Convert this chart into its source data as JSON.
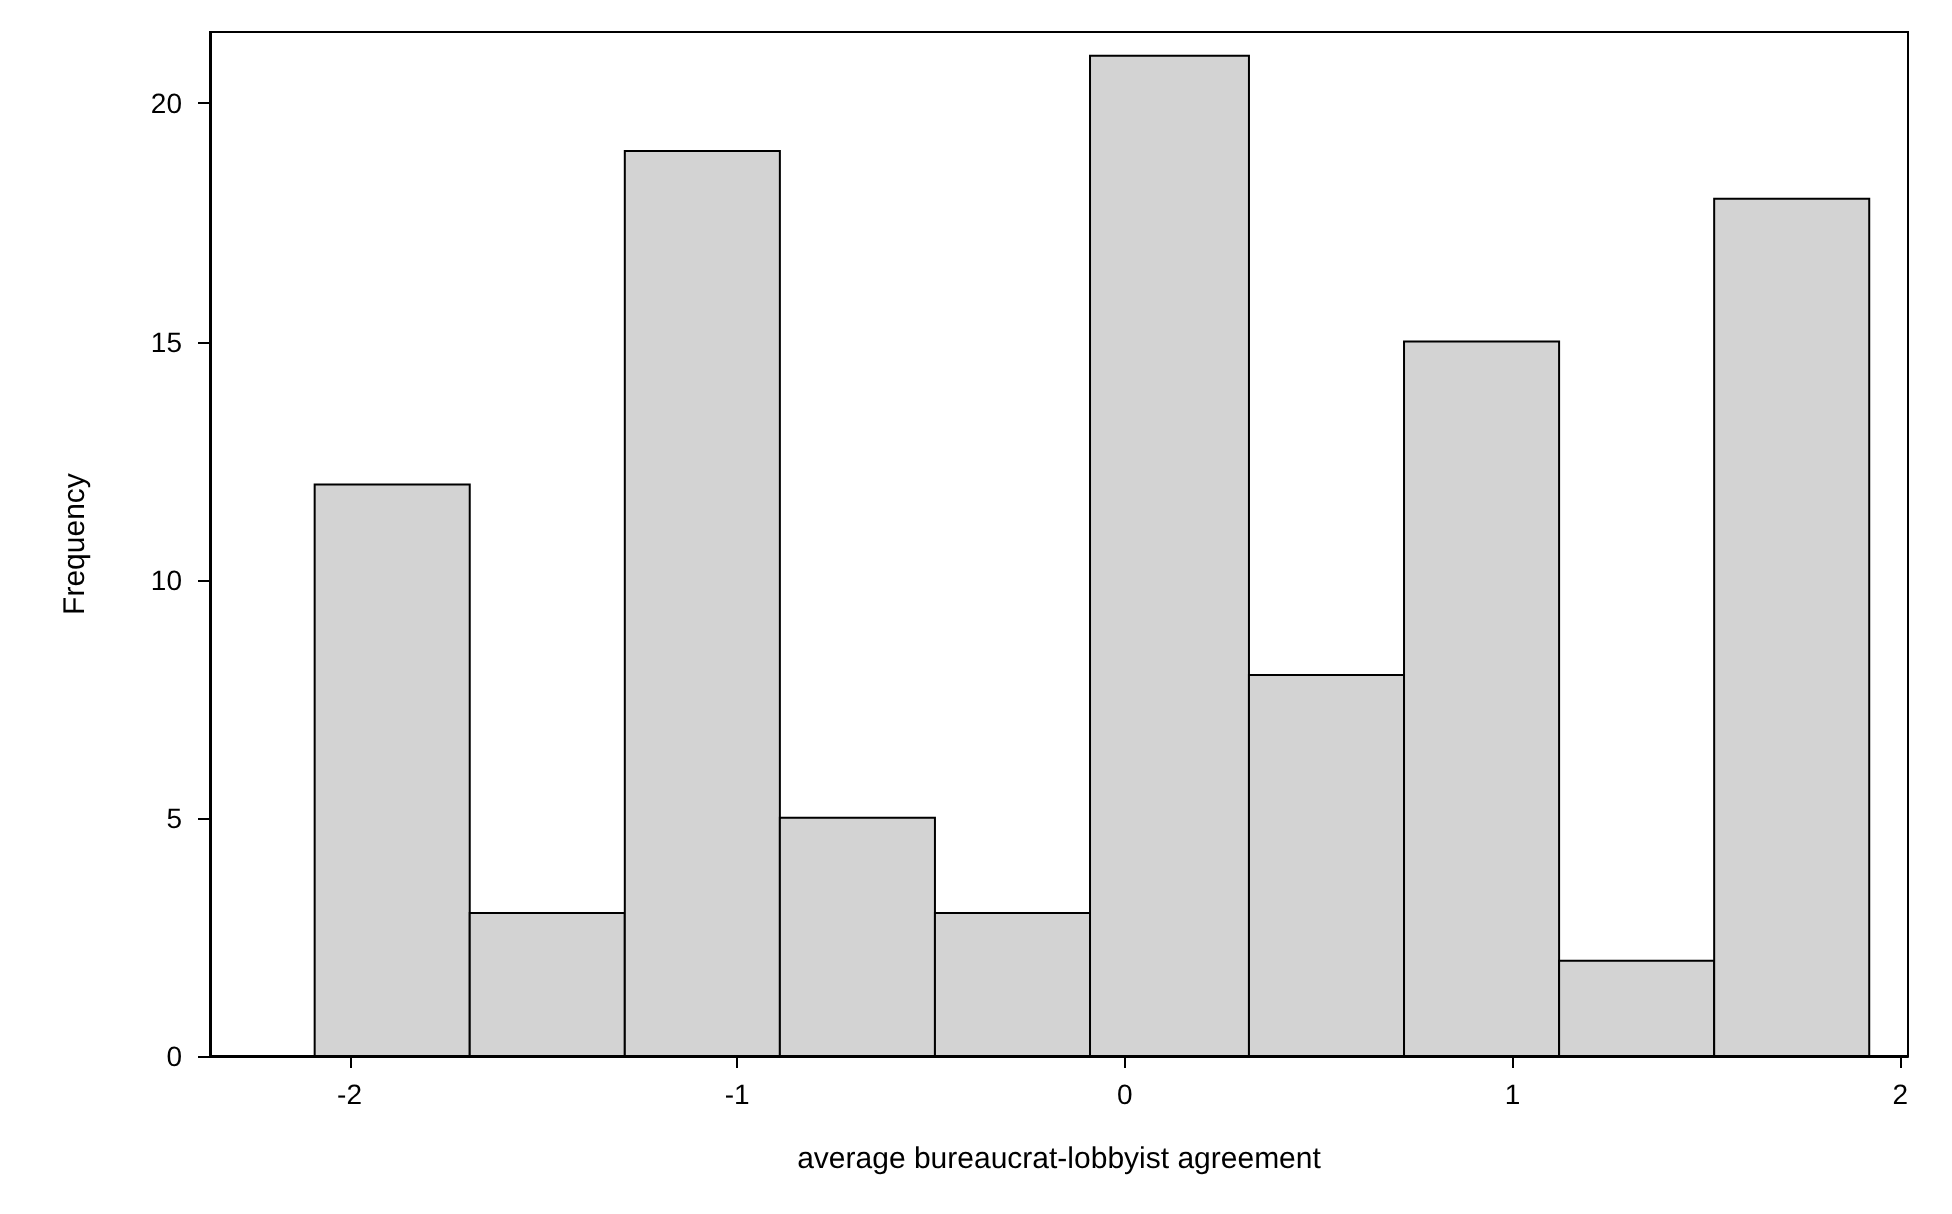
{
  "chart_data": {
    "type": "histogram",
    "xlabel": "average bureaucrat-lobbyist agreement",
    "ylabel": "Frequency",
    "bins": [
      -2.09,
      -1.69,
      -1.29,
      -0.89,
      -0.49,
      -0.09,
      0.32,
      0.72,
      1.12,
      1.52,
      1.92
    ],
    "values": [
      12,
      3,
      19,
      5,
      3,
      21,
      8,
      15,
      2,
      18
    ],
    "color": "#d3d3d3",
    "xlim": [
      -2.36,
      2.02
    ],
    "xticks": [
      -2,
      -1,
      0,
      1,
      2
    ],
    "ylim": [
      0,
      21.5
    ],
    "yticks": [
      0,
      5,
      10,
      15,
      20
    ],
    "grid": false
  }
}
